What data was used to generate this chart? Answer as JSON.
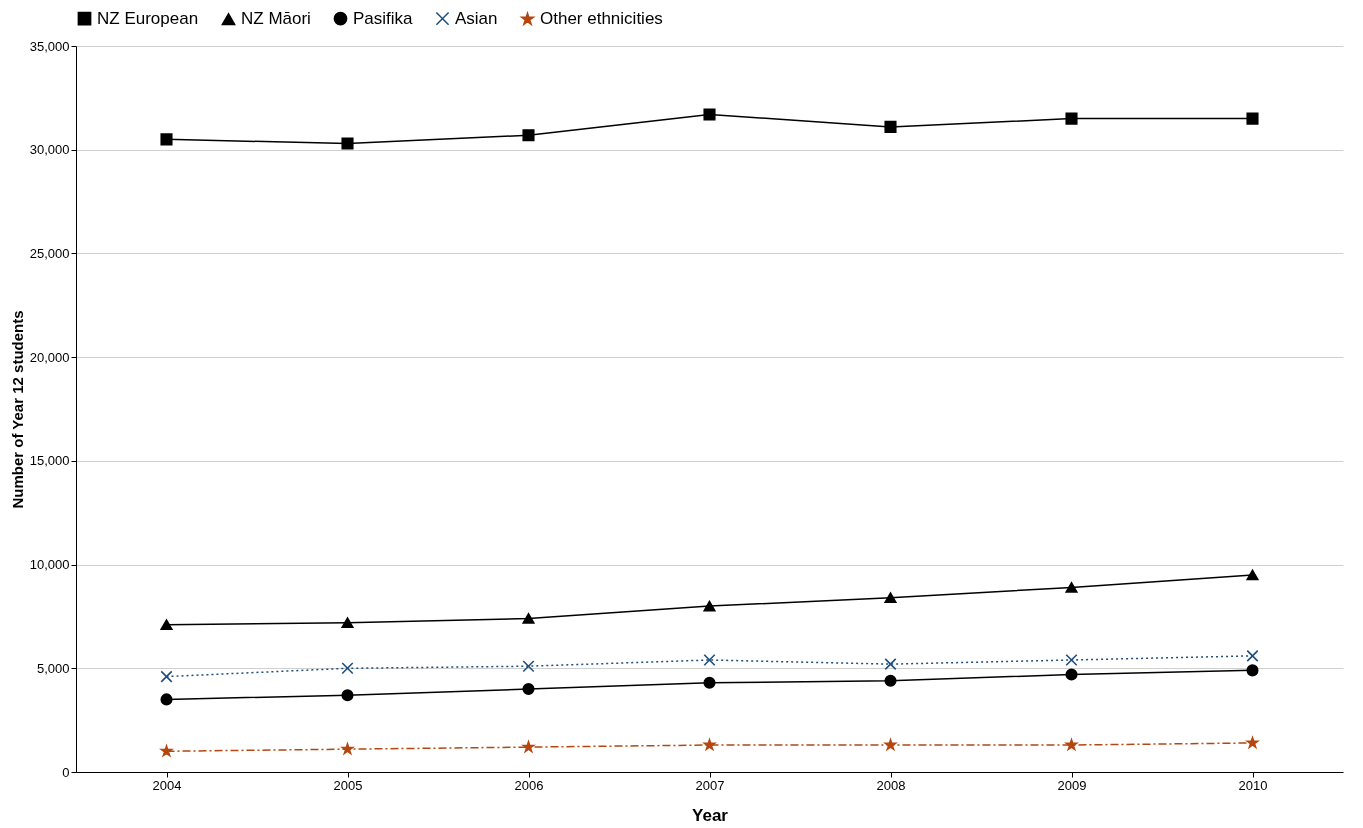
{
  "chart_data": {
    "type": "line",
    "xlabel": "Year",
    "ylabel": "Number of Year 12 students",
    "categories": [
      "2004",
      "2005",
      "2006",
      "2007",
      "2008",
      "2009",
      "2010"
    ],
    "series": [
      {
        "name": "NZ European",
        "color": "#000000",
        "marker": "square",
        "line_style": "solid",
        "values": [
          30500,
          30300,
          30700,
          31700,
          31100,
          31500,
          31500
        ]
      },
      {
        "name": "NZ Māori",
        "color": "#000000",
        "marker": "triangle",
        "line_style": "solid",
        "values": [
          7100,
          7200,
          7400,
          8000,
          8400,
          8900,
          9500
        ]
      },
      {
        "name": "Pasifika",
        "color": "#000000",
        "marker": "circle",
        "line_style": "solid",
        "values": [
          3500,
          3700,
          4000,
          4300,
          4400,
          4700,
          4900
        ]
      },
      {
        "name": "Asian",
        "color": "#1f4e79",
        "marker": "cross",
        "line_style": "dotted",
        "values": [
          4600,
          5000,
          5100,
          5400,
          5200,
          5400,
          5600
        ]
      },
      {
        "name": "Other ethnicities",
        "color": "#b5460f",
        "marker": "star",
        "line_style": "dashed",
        "values": [
          1000,
          1100,
          1200,
          1300,
          1300,
          1300,
          1400
        ]
      }
    ],
    "ylim": [
      0,
      35000
    ],
    "yticks": [
      0,
      {
        "value": 5000,
        "label": "5,000"
      },
      {
        "value": 10000,
        "label": "10,000"
      },
      {
        "value": 15000,
        "label": "15,000"
      },
      {
        "value": 20000,
        "label": "20,000"
      },
      {
        "value": 25000,
        "label": "25,000"
      },
      {
        "value": 30000,
        "label": "30,000"
      },
      {
        "value": 35000,
        "label": "35,000"
      }
    ],
    "grid": "y",
    "legend": "top"
  }
}
